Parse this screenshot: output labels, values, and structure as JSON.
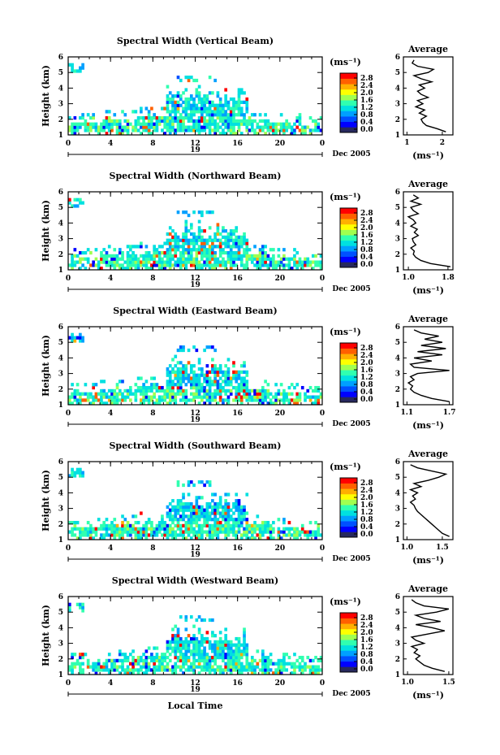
{
  "figure": {
    "x_axis_label": "Local Time",
    "date_label": "Dec 2005",
    "day_label": "19",
    "y_axis_label": "Height (km)",
    "colorbar_unit": "(ms⁻¹)",
    "average_title": "Average",
    "average_unit": "(ms⁻¹)",
    "colorbar_ticks": [
      "0.0",
      "0.4",
      "0.8",
      "1.2",
      "1.6",
      "2.0",
      "2.4",
      "2.8"
    ],
    "colormap": [
      "#27295e",
      "#0000ff",
      "#0050ff",
      "#00a0ff",
      "#00e0e0",
      "#30ffb0",
      "#a0ff50",
      "#ffff00",
      "#ffb000",
      "#ff6000",
      "#ff0000"
    ]
  },
  "chart_data": [
    {
      "type": "heatmap",
      "title": "Spectral Width (Vertical Beam)",
      "xlabel": "Local Time",
      "ylabel": "Height (km)",
      "x_ticks": [
        "0",
        "4",
        "8",
        "12",
        "16",
        "20",
        "0"
      ],
      "y_ticks": [
        "1",
        "2",
        "3",
        "4",
        "5",
        "6"
      ],
      "xlim": [
        0,
        24
      ],
      "ylim": [
        1,
        6
      ],
      "color_range": [
        0.0,
        2.8
      ],
      "average": {
        "title": "Average",
        "xlabel": "(ms⁻¹)",
        "x_ticks": [
          "1",
          "2"
        ],
        "xlim": [
          0.9,
          2.3
        ],
        "ylim": [
          1,
          6
        ],
        "heights": [
          1.2,
          1.4,
          1.6,
          1.8,
          2.0,
          2.2,
          2.4,
          2.6,
          2.8,
          3.0,
          3.2,
          3.4,
          3.6,
          3.8,
          4.0,
          4.2,
          4.4,
          4.6,
          4.8,
          5.0,
          5.2,
          5.4,
          5.6,
          5.8
        ],
        "values": [
          2.1,
          1.85,
          1.55,
          1.45,
          1.4,
          1.55,
          1.35,
          1.5,
          1.25,
          1.45,
          1.3,
          1.6,
          1.4,
          1.3,
          1.5,
          1.35,
          1.7,
          1.4,
          1.2,
          1.6,
          1.75,
          1.3,
          1.15,
          1.2
        ]
      }
    },
    {
      "type": "heatmap",
      "title": "Spectral Width (Northward Beam)",
      "xlabel": "Local Time",
      "ylabel": "Height (km)",
      "x_ticks": [
        "0",
        "4",
        "8",
        "12",
        "16",
        "20",
        "0"
      ],
      "y_ticks": [
        "1",
        "2",
        "3",
        "4",
        "5",
        "6"
      ],
      "xlim": [
        0,
        24
      ],
      "ylim": [
        1,
        6
      ],
      "color_range": [
        0.0,
        2.8
      ],
      "average": {
        "title": "Average",
        "xlabel": "(ms⁻¹)",
        "x_ticks": [
          "1.0",
          "1.8"
        ],
        "xlim": [
          0.9,
          1.9
        ],
        "ylim": [
          1,
          6
        ],
        "heights": [
          1.2,
          1.4,
          1.6,
          1.8,
          2.0,
          2.2,
          2.4,
          2.6,
          2.8,
          3.0,
          3.2,
          3.4,
          3.6,
          3.8,
          4.0,
          4.2,
          4.4,
          4.6,
          4.8,
          5.0,
          5.2,
          5.4,
          5.6,
          5.8
        ],
        "values": [
          1.85,
          1.45,
          1.25,
          1.15,
          1.1,
          1.12,
          1.05,
          1.15,
          1.1,
          1.08,
          1.2,
          1.12,
          1.18,
          1.05,
          1.15,
          1.1,
          1.0,
          1.2,
          1.1,
          1.05,
          1.25,
          1.05,
          1.2,
          1.1
        ]
      }
    },
    {
      "type": "heatmap",
      "title": "Spectral Width (Eastward Beam)",
      "xlabel": "Local Time",
      "ylabel": "Height (km)",
      "x_ticks": [
        "0",
        "4",
        "8",
        "12",
        "16",
        "20",
        "0"
      ],
      "y_ticks": [
        "1",
        "2",
        "3",
        "4",
        "5",
        "6"
      ],
      "xlim": [
        0,
        24
      ],
      "ylim": [
        1,
        6
      ],
      "color_range": [
        0.0,
        2.8
      ],
      "average": {
        "title": "Average",
        "xlabel": "(ms⁻¹)",
        "x_ticks": [
          "1.1",
          "1.7"
        ],
        "xlim": [
          1.05,
          1.75
        ],
        "ylim": [
          1,
          6
        ],
        "heights": [
          1.2,
          1.4,
          1.6,
          1.8,
          2.0,
          2.2,
          2.4,
          2.6,
          2.8,
          3.0,
          3.2,
          3.4,
          3.6,
          3.8,
          4.0,
          4.2,
          4.4,
          4.6,
          4.8,
          5.0,
          5.2,
          5.4,
          5.6,
          5.8
        ],
        "values": [
          1.7,
          1.45,
          1.3,
          1.2,
          1.15,
          1.18,
          1.12,
          1.2,
          1.15,
          1.25,
          1.7,
          1.2,
          1.15,
          1.45,
          1.2,
          1.6,
          1.25,
          1.65,
          1.3,
          1.6,
          1.35,
          1.55,
          1.3,
          1.2
        ]
      }
    },
    {
      "type": "heatmap",
      "title": "Spectral Width (Southward Beam)",
      "xlabel": "Local Time",
      "ylabel": "Height (km)",
      "x_ticks": [
        "0",
        "4",
        "8",
        "12",
        "16",
        "20",
        "0"
      ],
      "y_ticks": [
        "1",
        "2",
        "3",
        "4",
        "5",
        "6"
      ],
      "xlim": [
        0,
        24
      ],
      "ylim": [
        1,
        6
      ],
      "color_range": [
        0.0,
        2.8
      ],
      "average": {
        "title": "Average",
        "xlabel": "(ms⁻¹)",
        "x_ticks": [
          "1.0",
          "1.5"
        ],
        "xlim": [
          0.95,
          1.65
        ],
        "ylim": [
          1,
          6
        ],
        "heights": [
          1.2,
          1.4,
          1.6,
          1.8,
          2.0,
          2.2,
          2.4,
          2.6,
          2.8,
          3.0,
          3.2,
          3.4,
          3.6,
          3.8,
          4.0,
          4.2,
          4.4,
          4.6,
          4.8,
          5.0,
          5.2,
          5.4,
          5.6,
          5.8
        ],
        "values": [
          1.6,
          1.5,
          1.45,
          1.4,
          1.35,
          1.3,
          1.25,
          1.2,
          1.15,
          1.12,
          1.1,
          1.05,
          1.12,
          1.08,
          1.15,
          1.05,
          1.2,
          1.1,
          1.3,
          1.45,
          1.55,
          1.35,
          1.15,
          1.05
        ]
      }
    },
    {
      "type": "heatmap",
      "title": "Spectral Width (Westward Beam)",
      "xlabel": "Local Time",
      "ylabel": "Height (km)",
      "x_ticks": [
        "0",
        "4",
        "8",
        "12",
        "16",
        "20",
        "0"
      ],
      "y_ticks": [
        "1",
        "2",
        "3",
        "4",
        "5",
        "6"
      ],
      "xlim": [
        0,
        24
      ],
      "ylim": [
        1,
        6
      ],
      "color_range": [
        0.0,
        2.8
      ],
      "average": {
        "title": "Average",
        "xlabel": "(ms⁻¹)",
        "x_ticks": [
          "1.0",
          "1.5"
        ],
        "xlim": [
          0.95,
          1.55
        ],
        "ylim": [
          1,
          6
        ],
        "heights": [
          1.2,
          1.4,
          1.6,
          1.8,
          2.0,
          2.2,
          2.4,
          2.6,
          2.8,
          3.0,
          3.2,
          3.4,
          3.6,
          3.8,
          4.0,
          4.2,
          4.4,
          4.6,
          4.8,
          5.0,
          5.2,
          5.4,
          5.6,
          5.8
        ],
        "values": [
          1.45,
          1.3,
          1.2,
          1.15,
          1.1,
          1.15,
          1.08,
          1.12,
          1.05,
          1.2,
          1.1,
          1.05,
          1.25,
          1.45,
          1.3,
          1.1,
          1.4,
          1.2,
          1.1,
          1.35,
          1.5,
          1.2,
          1.1,
          1.05
        ]
      }
    }
  ]
}
